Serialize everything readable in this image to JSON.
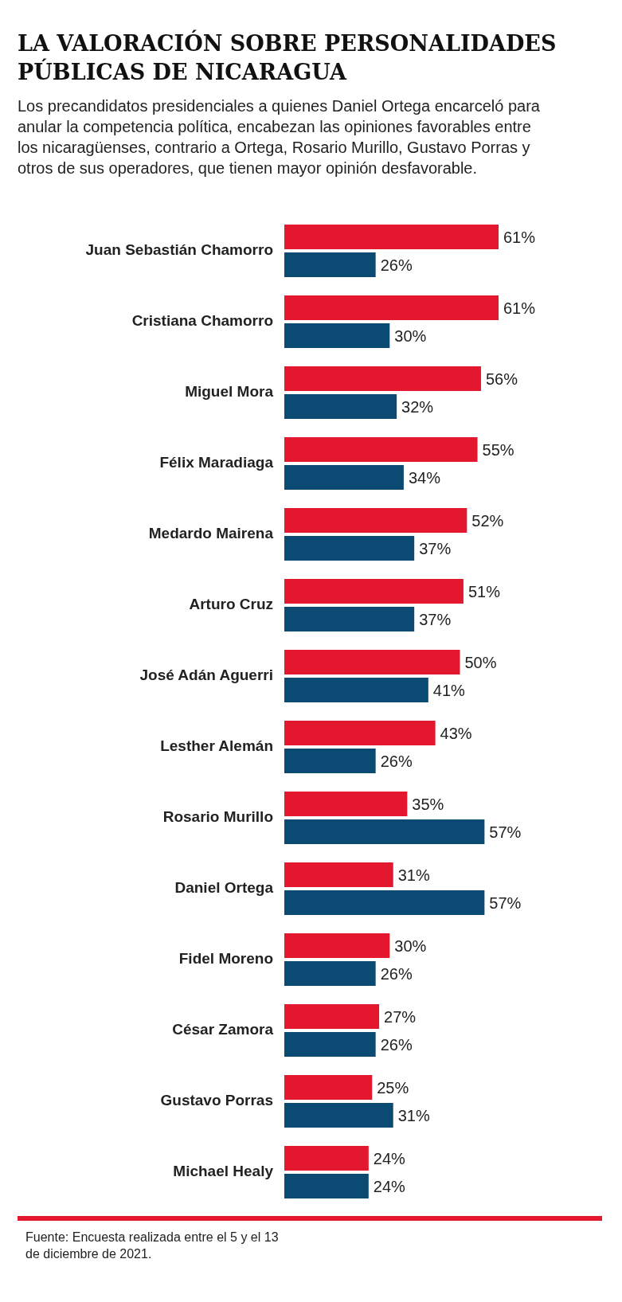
{
  "chart_data": {
    "type": "bar",
    "orientation": "horizontal",
    "title": "LA VALORACIÓN SOBRE PERSONALIDADES PÚBLICAS DE NICARAGUA",
    "subtitle": "Los precandidatos presidenciales a quienes Daniel Ortega encarceló para anular la competencia política, encabezan las opiniones favorables entre los nicaragüenses, contrario a Ortega, Rosario Murillo, Gustavo Porras y otros de sus operadores, que tienen mayor opinión desfavorable.",
    "categories": [
      "Juan Sebastián Chamorro",
      "Cristiana Chamorro",
      "Miguel Mora",
      "Félix Maradiaga",
      "Medardo Mairena",
      "Arturo Cruz",
      "José Adán Aguerri",
      "Lesther Alemán",
      "Rosario Murillo",
      "Daniel Ortega",
      "Fidel Moreno",
      "César Zamora",
      "Gustavo Porras",
      "Michael Healy"
    ],
    "series": [
      {
        "color": "#e3172d",
        "values": [
          61,
          61,
          56,
          55,
          52,
          51,
          50,
          43,
          35,
          31,
          30,
          27,
          25,
          24
        ],
        "value_labels": [
          "61%",
          "61%",
          "56%",
          "55%",
          "52%",
          "51%",
          "50%",
          "43%",
          "35%",
          "31%",
          "30%",
          "27%",
          "25%",
          "24%"
        ]
      },
      {
        "color": "#0b4a72",
        "values": [
          26,
          30,
          32,
          34,
          37,
          37,
          41,
          26,
          57,
          57,
          26,
          26,
          31,
          24
        ],
        "value_labels": [
          "26%",
          "30%",
          "32%",
          "34%",
          "37%",
          "37%",
          "41%",
          "26%",
          "57%",
          "57%",
          "26%",
          "26%",
          "31%",
          "24%"
        ]
      }
    ],
    "tick_labels": "y",
    "annotations": [
      "Fuente: Encuesta realizada entre el 5 y el 13 de diciembre de 2021."
    ]
  }
}
